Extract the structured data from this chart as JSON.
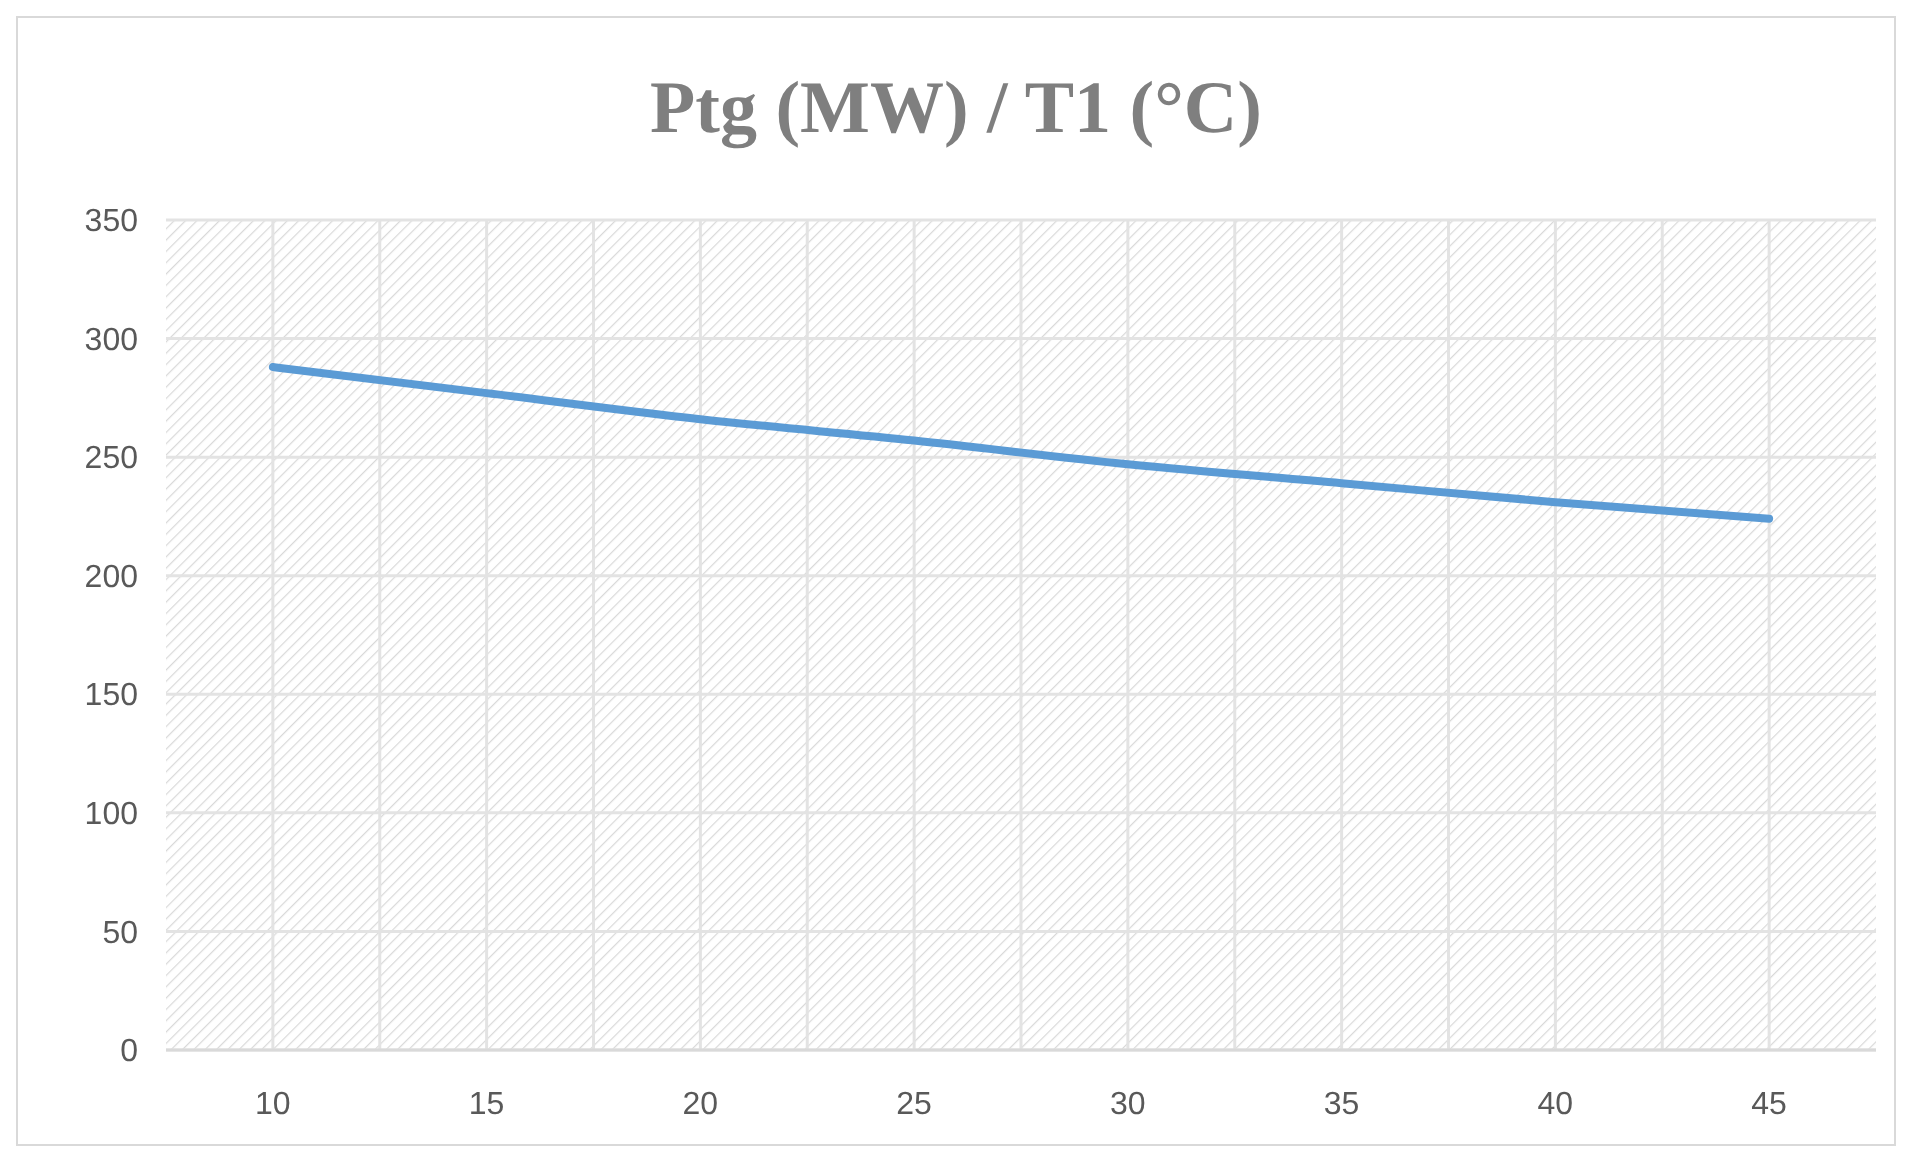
{
  "chart_data": {
    "type": "line",
    "title": "Ptg (MW) / T1 (°C)",
    "x": [
      10,
      15,
      20,
      25,
      30,
      35,
      40,
      45
    ],
    "series": [
      {
        "color": "#5b9bd5",
        "values": [
          288,
          277,
          266,
          257,
          247,
          239,
          231,
          224
        ]
      }
    ],
    "xlim": [
      7.5,
      47.5
    ],
    "xticks": [
      10,
      {
        "value": 12.5,
        "label": null
      },
      15,
      {
        "value": 17.5,
        "label": null
      },
      20,
      {
        "value": 22.5,
        "label": null
      },
      25,
      {
        "value": 27.5,
        "label": null
      },
      30,
      {
        "value": 32.5,
        "label": null
      },
      35,
      {
        "value": 37.5,
        "label": null
      },
      40,
      {
        "value": 42.5,
        "label": null
      },
      45
    ],
    "ylim": [
      0,
      350
    ],
    "yticks": [
      0,
      50,
      100,
      150,
      200,
      250,
      300,
      350
    ],
    "grid": true,
    "marker": "none",
    "line_style": "solid"
  }
}
